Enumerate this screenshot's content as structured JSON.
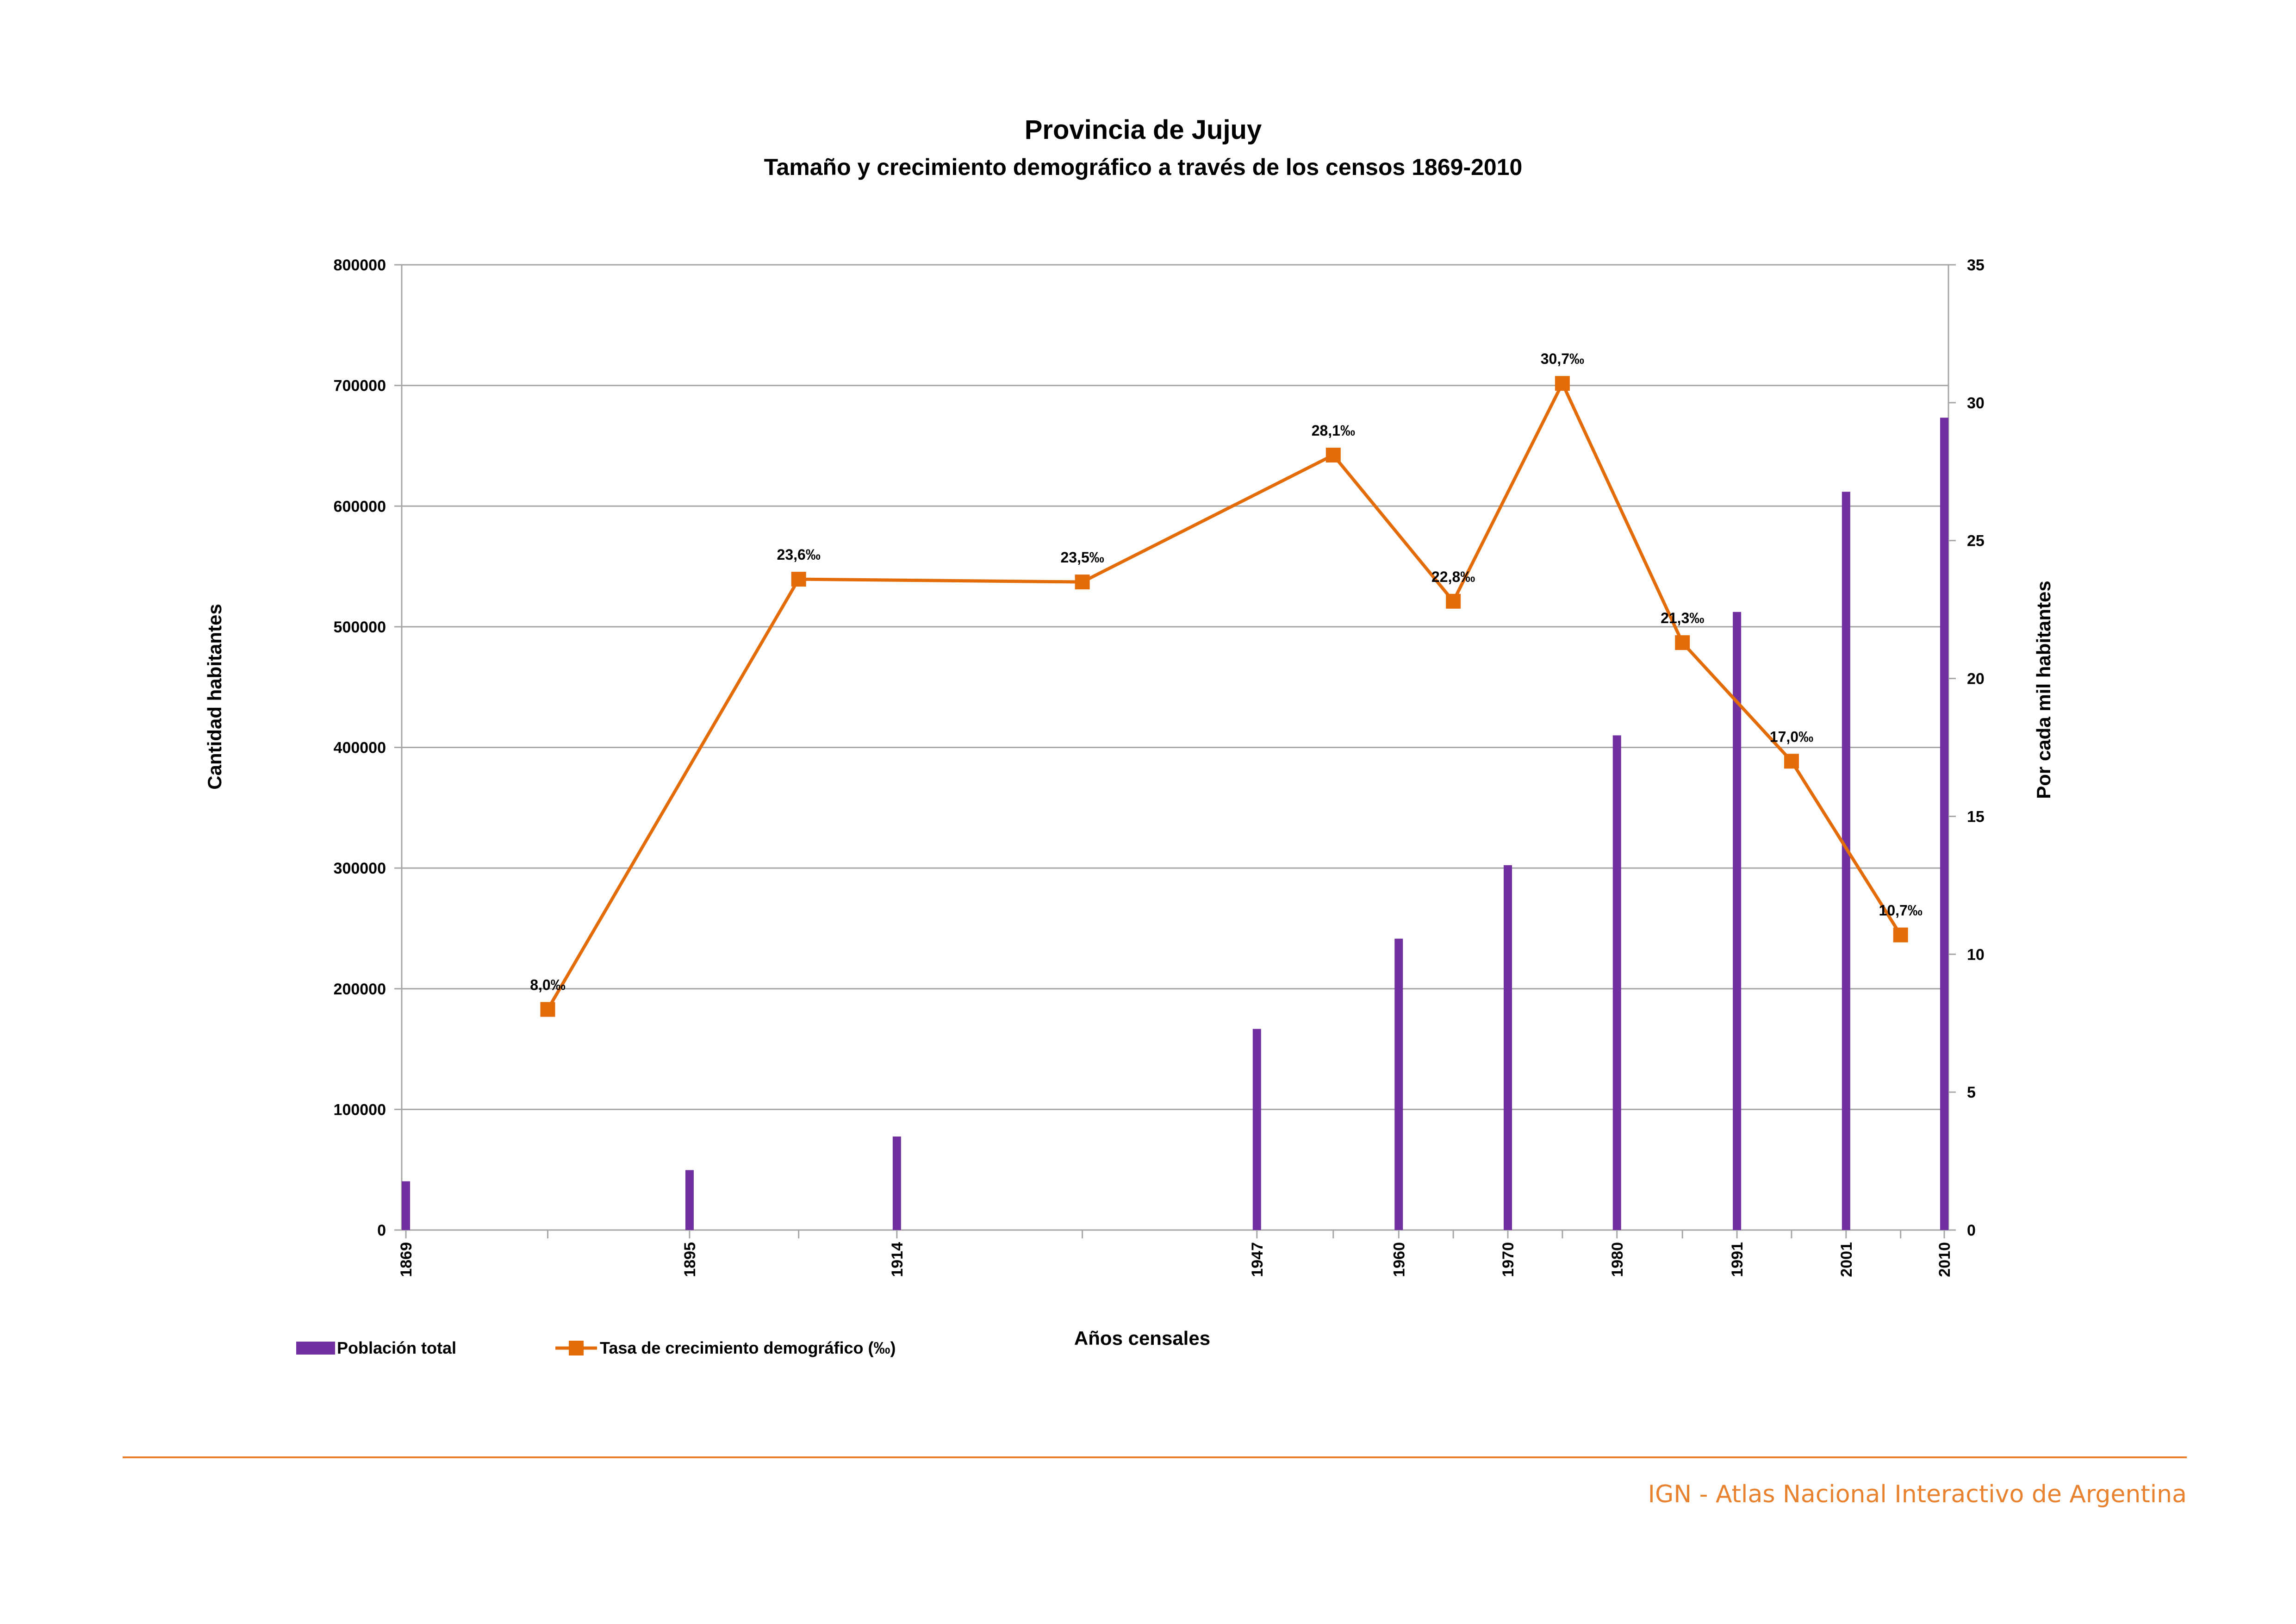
{
  "chart_data": {
    "type": "bar",
    "title": "Provincia de Jujuy",
    "subtitle": "Tamaño y crecimiento demográfico a través de los censos 1869-2010",
    "xlabel": "Años censales",
    "ylabel": "Cantidad habitantes",
    "y2label": "Por cada mil habitantes",
    "x_range": [
      1869,
      2010
    ],
    "ylim": [
      0,
      800000
    ],
    "y_ticks": [
      0,
      100000,
      200000,
      300000,
      400000,
      500000,
      600000,
      700000,
      800000
    ],
    "y_tick_labels": [
      "0",
      "100000",
      "200000",
      "300000",
      "400000",
      "500000",
      "600000",
      "700000",
      "800000"
    ],
    "y2lim": [
      0,
      35
    ],
    "y2_ticks": [
      0,
      5,
      10,
      15,
      20,
      25,
      30,
      35
    ],
    "y2_tick_labels": [
      "0",
      "5",
      "10",
      "15",
      "20",
      "25",
      "30",
      "35"
    ],
    "x_tick_labels": [
      "1869",
      "1895",
      "1914",
      "1947",
      "1960",
      "1970",
      "1980",
      "1991",
      "2001",
      "2010"
    ],
    "grid": true,
    "legend_position": "bottom-left",
    "series": [
      {
        "name": "Población total",
        "kind": "bar",
        "color": "#7030a0",
        "x": [
          1869,
          1895,
          1914,
          1947,
          1960,
          1970,
          1980,
          1991,
          2001,
          2010
        ],
        "values": [
          40400,
          49700,
          77500,
          166700,
          241500,
          302400,
          410000,
          512300,
          611900,
          673300
        ]
      },
      {
        "name": "Tasa de crecimiento demográfico (‰)",
        "kind": "line",
        "axis": "right",
        "color": "#e36c09",
        "x": [
          1882,
          1905,
          1931,
          1954,
          1965,
          1975,
          1986,
          1996,
          2006
        ],
        "values": [
          8.0,
          23.6,
          23.5,
          28.1,
          22.8,
          30.7,
          21.3,
          17.0,
          10.7
        ],
        "labels": [
          "8,0‰",
          "23,6‰",
          "23,5‰",
          "28,1‰",
          "22,8‰",
          "30,7‰",
          "21,3‰",
          "17,0‰",
          "10,7‰"
        ]
      }
    ]
  },
  "footer": {
    "credit": "IGN - Atlas Nacional Interactivo de Argentina",
    "accent_color": "#e8822f"
  }
}
